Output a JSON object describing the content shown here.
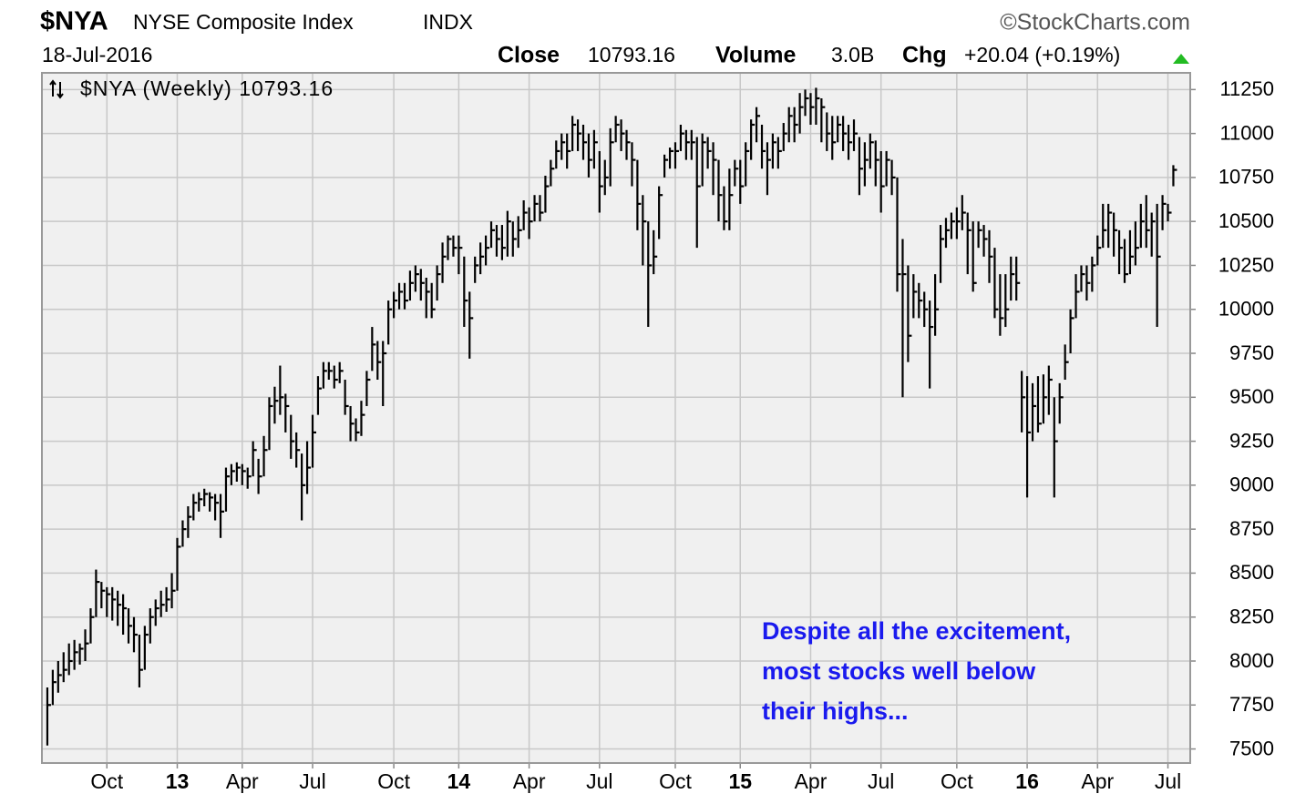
{
  "chart_data": {
    "type": "ohlc",
    "symbol": "$NYA",
    "title": "NYSE Composite Index",
    "exchange": "INDX",
    "source": "©StockCharts.com",
    "date": "18-Jul-2016",
    "close_label": "Close",
    "close": "10793.16",
    "volume_label": "Volume",
    "volume": "3.0B",
    "change_label": "Chg",
    "change": "+20.04 (+0.19%)",
    "annotation": [
      "Despite all the excitement,",
      "most stocks well below",
      "their highs..."
    ],
    "ylim": [
      7420,
      11345
    ],
    "yticks": [
      7500,
      7750,
      8000,
      8250,
      8500,
      8750,
      9000,
      9250,
      9500,
      9750,
      10000,
      10250,
      10500,
      10750,
      11000,
      11250
    ],
    "grid": true,
    "plot_background": "#f0f0f0",
    "grid_color": "#c8c8c8",
    "categories": [
      null,
      null,
      null,
      null,
      null,
      null,
      null,
      null,
      null,
      null,
      null,
      "Oct",
      null,
      null,
      null,
      null,
      null,
      null,
      null,
      null,
      null,
      null,
      null,
      null,
      "13",
      null,
      null,
      null,
      null,
      null,
      null,
      null,
      null,
      null,
      null,
      null,
      "Apr",
      null,
      null,
      null,
      null,
      null,
      null,
      null,
      null,
      null,
      null,
      null,
      null,
      "Jul",
      null,
      null,
      null,
      null,
      null,
      null,
      null,
      null,
      null,
      null,
      null,
      null,
      null,
      null,
      "Oct",
      null,
      null,
      null,
      null,
      null,
      null,
      null,
      null,
      null,
      null,
      null,
      "14",
      null,
      null,
      null,
      null,
      null,
      null,
      null,
      null,
      null,
      null,
      null,
      null,
      "Apr",
      null,
      null,
      null,
      null,
      null,
      null,
      null,
      null,
      null,
      null,
      null,
      null,
      "Jul",
      null,
      null,
      null,
      null,
      null,
      null,
      null,
      null,
      null,
      null,
      null,
      null,
      null,
      "Oct",
      null,
      null,
      null,
      null,
      null,
      null,
      null,
      null,
      null,
      null,
      null,
      "15",
      null,
      null,
      null,
      null,
      null,
      null,
      null,
      null,
      null,
      null,
      null,
      null,
      "Apr",
      null,
      null,
      null,
      null,
      null,
      null,
      null,
      null,
      null,
      null,
      null,
      null,
      "Jul",
      null,
      null,
      null,
      null,
      null,
      null,
      null,
      null,
      null,
      null,
      null,
      null,
      null,
      "Oct",
      null,
      null,
      null,
      null,
      null,
      null,
      null,
      null,
      null,
      null,
      null,
      null,
      "16",
      null,
      null,
      null,
      null,
      null,
      null,
      null,
      null,
      null,
      null,
      null,
      null,
      "Apr",
      null,
      null,
      null,
      null,
      null,
      null,
      null,
      null,
      null,
      null,
      null,
      null,
      "Jul",
      null
    ],
    "series": [
      {
        "name": "$NYA (Weekly) 10793.16",
        "color": "#000000",
        "high": [
          7850,
          7950,
          8000,
          8050,
          8100,
          8120,
          8100,
          8180,
          8300,
          8520,
          8450,
          8420,
          8420,
          8400,
          8380,
          8300,
          8250,
          8150,
          8200,
          8300,
          8350,
          8400,
          8420,
          8500,
          8700,
          8800,
          8880,
          8950,
          8960,
          8980,
          8960,
          8950,
          8950,
          9100,
          9120,
          9130,
          9120,
          9100,
          9250,
          9150,
          9280,
          9500,
          9560,
          9680,
          9520,
          9400,
          9300,
          9180,
          9250,
          9400,
          9620,
          9700,
          9700,
          9680,
          9700,
          9600,
          9450,
          9380,
          9480,
          9650,
          9900,
          9820,
          9820,
          10050,
          10100,
          10150,
          10150,
          10220,
          10250,
          10230,
          10180,
          10150,
          10250,
          10380,
          10420,
          10420,
          10420,
          10300,
          10100,
          10300,
          10380,
          10420,
          10500,
          10480,
          10480,
          10560,
          10500,
          10530,
          10620,
          10580,
          10650,
          10650,
          10760,
          10850,
          10960,
          11000,
          11000,
          11100,
          11080,
          11050,
          11000,
          11020,
          10900,
          10850,
          11030,
          11100,
          11080,
          11020,
          10950,
          10850,
          10650,
          10500,
          10450,
          10700,
          10880,
          10920,
          10950,
          11050,
          11020,
          11020,
          10980,
          11000,
          10980,
          10950,
          10850,
          10700,
          10800,
          10850,
          10850,
          10950,
          11080,
          11150,
          11050,
          10950,
          11000,
          10980,
          11060,
          11150,
          11150,
          11230,
          11250,
          11230,
          11260,
          11200,
          11120,
          11100,
          11100,
          11100,
          11050,
          11080,
          10980,
          10950,
          11000,
          10960,
          10900,
          10900,
          10850,
          10750,
          10400,
          10250,
          10200,
          10150,
          10100,
          10050,
          10200,
          10480,
          10520,
          10550,
          10580,
          10650,
          10550,
          10500,
          10500,
          10480,
          10450,
          10350,
          10200,
          10200,
          10300,
          10300,
          9650,
          9620,
          9580,
          9620,
          9630,
          9680,
          9500,
          9580,
          9800,
          10000,
          10200,
          10250,
          10250,
          10300,
          10420,
          10600,
          10600,
          10550,
          10450,
          10400,
          10450,
          10500,
          10600,
          10650,
          10550,
          10600,
          10650,
          10600,
          10820
        ],
        "low": [
          7520,
          7750,
          7820,
          7880,
          7920,
          7950,
          7980,
          8000,
          8100,
          8250,
          8300,
          8250,
          8230,
          8200,
          8150,
          8100,
          8050,
          7850,
          7950,
          8100,
          8200,
          8250,
          8280,
          8300,
          8400,
          8650,
          8700,
          8800,
          8850,
          8880,
          8850,
          8800,
          8700,
          8850,
          9000,
          9020,
          9000,
          8980,
          9050,
          8950,
          9050,
          9200,
          9350,
          9400,
          9300,
          9150,
          9100,
          8800,
          8950,
          9100,
          9400,
          9550,
          9600,
          9550,
          9580,
          9400,
          9250,
          9250,
          9280,
          9450,
          9650,
          9600,
          9450,
          9800,
          9950,
          10000,
          10000,
          10050,
          10100,
          10050,
          9950,
          9950,
          10050,
          10150,
          10280,
          10300,
          10200,
          9900,
          9720,
          10150,
          10200,
          10250,
          10350,
          10300,
          10280,
          10300,
          10300,
          10350,
          10450,
          10400,
          10500,
          10500,
          10550,
          10700,
          10800,
          10850,
          10800,
          10900,
          10900,
          10850,
          10750,
          10800,
          10550,
          10650,
          10700,
          10950,
          10900,
          10850,
          10700,
          10450,
          10250,
          9900,
          10200,
          10400,
          10750,
          10800,
          10800,
          10900,
          10850,
          10850,
          10350,
          10700,
          10800,
          10650,
          10500,
          10450,
          10450,
          10700,
          10600,
          10700,
          10850,
          10950,
          10800,
          10650,
          10800,
          10800,
          10900,
          10950,
          10950,
          11000,
          11100,
          11050,
          11050,
          10950,
          10900,
          10850,
          10950,
          10900,
          10850,
          10900,
          10650,
          10700,
          10800,
          10700,
          10550,
          10700,
          10650,
          10100,
          9500,
          9700,
          9950,
          9950,
          9900,
          9550,
          9850,
          10150,
          10350,
          10400,
          10400,
          10450,
          10200,
          10100,
          10350,
          10300,
          10150,
          9950,
          9850,
          9900,
          10050,
          10050,
          9300,
          8930,
          9250,
          9300,
          9350,
          9400,
          8930,
          9350,
          9600,
          9750,
          9950,
          10100,
          10050,
          10100,
          10250,
          10350,
          10350,
          10300,
          10200,
          10150,
          10200,
          10250,
          10350,
          10350,
          10300,
          9900,
          10450,
          10500,
          10700
        ],
        "close": [
          7750,
          7880,
          7920,
          7950,
          8000,
          8050,
          8070,
          8100,
          8250,
          8450,
          8400,
          8380,
          8350,
          8320,
          8300,
          8200,
          8150,
          7950,
          8150,
          8250,
          8300,
          8320,
          8350,
          8400,
          8650,
          8750,
          8820,
          8900,
          8920,
          8950,
          8930,
          8900,
          8850,
          9050,
          9080,
          9100,
          9080,
          9050,
          9200,
          9050,
          9200,
          9450,
          9480,
          9500,
          9450,
          9250,
          9200,
          9000,
          9100,
          9300,
          9550,
          9650,
          9650,
          9600,
          9650,
          9450,
          9350,
          9300,
          9400,
          9600,
          9800,
          9700,
          9750,
          10000,
          10050,
          10100,
          10050,
          10150,
          10200,
          10150,
          10100,
          10000,
          10200,
          10300,
          10400,
          10350,
          10350,
          10050,
          9950,
          10250,
          10300,
          10350,
          10450,
          10400,
          10350,
          10500,
          10400,
          10450,
          10550,
          10500,
          10600,
          10550,
          10700,
          10800,
          10900,
          10950,
          10900,
          11050,
          11000,
          10950,
          10850,
          10950,
          10700,
          10750,
          10950,
          11050,
          11000,
          10950,
          10850,
          10600,
          10500,
          10250,
          10300,
          10650,
          10850,
          10900,
          10900,
          11000,
          10950,
          10950,
          10700,
          10950,
          10900,
          10850,
          10650,
          10500,
          10650,
          10800,
          10700,
          10900,
          11050,
          11100,
          10900,
          10850,
          10950,
          10900,
          11000,
          11100,
          11050,
          11150,
          11200,
          11150,
          11200,
          11150,
          11000,
          10950,
          11050,
          11000,
          10950,
          11000,
          10800,
          10850,
          10950,
          10850,
          10700,
          10850,
          10750,
          10200,
          10200,
          9850,
          10100,
          10050,
          10000,
          9900,
          10000,
          10400,
          10450,
          10500,
          10500,
          10550,
          10450,
          10150,
          10450,
          10400,
          10300,
          10000,
          9950,
          10000,
          10200,
          10150,
          9500,
          9300,
          9450,
          9350,
          9500,
          9600,
          9250,
          9500,
          9700,
          9950,
          10100,
          10200,
          10150,
          10250,
          10350,
          10450,
          10550,
          10450,
          10350,
          10200,
          10300,
          10350,
          10500,
          10450,
          10500,
          10300,
          10600,
          10550,
          10793.16
        ]
      }
    ]
  }
}
